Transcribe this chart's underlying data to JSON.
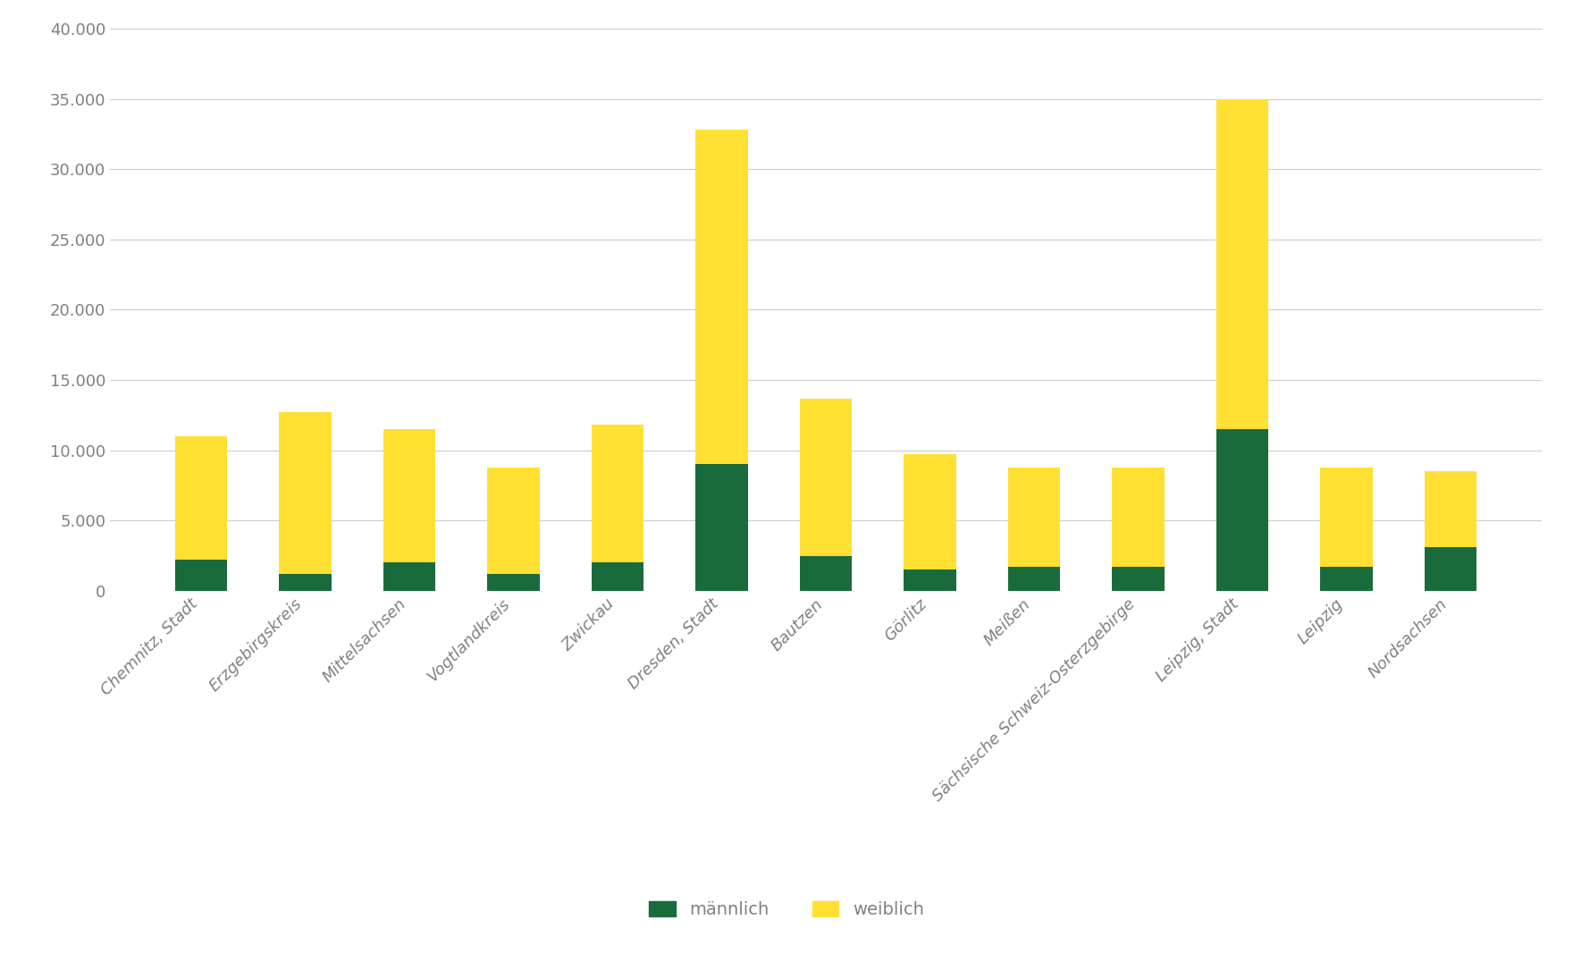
{
  "categories": [
    "Chemnitz, Stadt",
    "Erzgebirgskreis",
    "Mittelsachsen",
    "Vogtlandkreis",
    "Zwickau",
    "Dresden, Stadt",
    "Bautzen",
    "Görlitz",
    "Meißen",
    "Sächsische Schweiz-Osterzgebirge",
    "Leipzig, Stadt",
    "Leipzig",
    "Nordsachsen"
  ],
  "maennlich": [
    2200,
    1200,
    2000,
    1200,
    2000,
    9000,
    2500,
    1500,
    1700,
    1700,
    11500,
    1700,
    3100
  ],
  "weiblich": [
    8800,
    11500,
    9500,
    7600,
    9800,
    23800,
    11200,
    8200,
    7100,
    7100,
    23500,
    7100,
    5400
  ],
  "color_maennlich": "#1a6b3c",
  "color_weiblich": "#ffe033",
  "background_color": "#ffffff",
  "grid_color": "#cccccc",
  "label_maennlich": "männlich",
  "label_weiblich": "weiblich",
  "ylim": [
    0,
    40000
  ],
  "yticks": [
    0,
    5000,
    10000,
    15000,
    20000,
    25000,
    30000,
    35000,
    40000
  ],
  "tick_label_color": "#808080",
  "bar_width": 0.5,
  "figsize": [
    17.6,
    10.66
  ],
  "dpi": 100
}
